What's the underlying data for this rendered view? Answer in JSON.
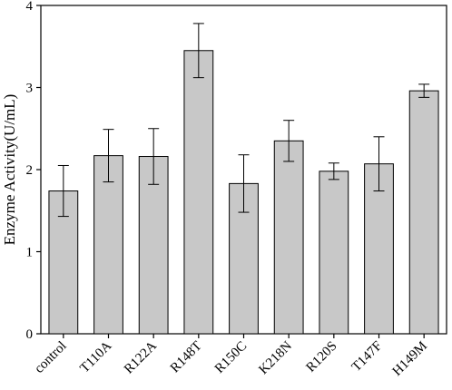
{
  "chart_data": {
    "type": "bar",
    "title": "",
    "xlabel": "",
    "ylabel": "Enzyme Activity(U/mL)",
    "categories": [
      "control",
      "T110A",
      "R122A",
      "R148T",
      "R150C",
      "K218N",
      "R120S",
      "T147F",
      "H149M"
    ],
    "values": [
      1.74,
      2.17,
      2.16,
      3.45,
      1.83,
      2.35,
      1.98,
      2.07,
      2.96
    ],
    "errors": [
      0.31,
      0.32,
      0.34,
      0.33,
      0.35,
      0.25,
      0.1,
      0.33,
      0.08
    ],
    "ylim": [
      0,
      4
    ],
    "yticks": [
      0,
      1,
      2,
      3,
      4
    ],
    "grid": false,
    "colors": {
      "bar_fill": "#c8c8c8",
      "stroke": "#000000"
    }
  }
}
